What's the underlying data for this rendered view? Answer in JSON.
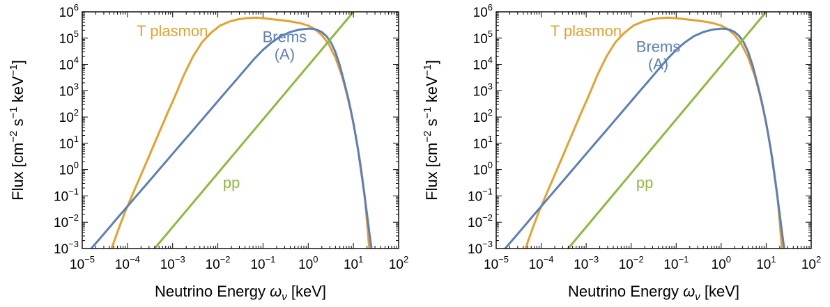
{
  "colors": {
    "t_plasmon": "#E5A12F",
    "brems": "#5B7FB8",
    "pp": "#8CBA3C",
    "axis": "#000000"
  },
  "chart_data": [
    {
      "type": "line",
      "title": "",
      "xlabel": "Neutrino Energy",
      "xlabel_symbol": "ω",
      "xlabel_symbol_sub": "ν",
      "xlabel_unit": "[keV]",
      "ylabel": "Flux",
      "ylabel_unit": "[cm−2 s−1 keV−1]",
      "xscale": "log",
      "yscale": "log",
      "xlim": [
        1e-05,
        100
      ],
      "ylim": [
        0.001,
        1000000
      ],
      "x_ticks": [
        1e-05,
        0.0001,
        0.001,
        0.01,
        0.1,
        1,
        10,
        100
      ],
      "y_ticks": [
        0.001,
        0.01,
        0.1,
        1,
        10,
        100,
        1000,
        10000,
        100000,
        1000000
      ],
      "grid": false,
      "legend": "none",
      "series": [
        {
          "name": "T plasmon",
          "label_position": [
            0.00016,
            120000
          ],
          "x": [
            4.47e-05,
            5.6e-05,
            7.08e-05,
            8.9e-05,
            0.000112,
            0.000141,
            0.000178,
            0.000224,
            0.000282,
            0.000398,
            0.000562,
            0.000794,
            0.00112,
            0.00178,
            0.00282,
            0.00447,
            0.00708,
            0.0112,
            0.0178,
            0.0282,
            0.0447,
            0.0708,
            0.112,
            0.178,
            0.282,
            0.447,
            0.708,
            1.0,
            1.41,
            2.0,
            2.82,
            4.0,
            5.62,
            7.08,
            8.91,
            11.2,
            14.1,
            17.8,
            20.0,
            22.4
          ],
          "y": [
            0.001,
            0.003,
            0.009,
            0.025,
            0.063,
            0.16,
            0.4,
            1.0,
            2.5,
            10,
            40,
            160,
            600,
            4000,
            20000,
            70000,
            160000,
            300000,
            420000,
            520000,
            580000,
            600000,
            560000,
            510000,
            470000,
            420000,
            360000,
            300000,
            220000,
            130000,
            60000,
            18000,
            3500,
            800,
            150,
            20,
            2,
            0.1,
            0.01,
            0.001
          ]
        },
        {
          "name": "Brems",
          "name_line2": "(A)",
          "label_position": [
            0.3,
            70000
          ],
          "x": [
            1.58e-05,
            2.51e-05,
            3.98e-05,
            6.3e-05,
            0.0001,
            0.000158,
            0.000251,
            0.000398,
            0.00063,
            0.001,
            0.00158,
            0.00251,
            0.00398,
            0.0063,
            0.01,
            0.0158,
            0.0251,
            0.0398,
            0.063,
            0.1,
            0.158,
            0.251,
            0.398,
            0.63,
            1.0,
            1.26,
            1.58,
            2.0,
            2.51,
            3.16,
            3.98,
            5.01,
            6.31,
            7.94,
            10.0,
            12.6,
            15.8,
            20.0,
            23.0,
            25.1
          ],
          "y": [
            0.001,
            0.0025,
            0.0063,
            0.016,
            0.04,
            0.1,
            0.25,
            0.63,
            1.58,
            4.0,
            10,
            25,
            63,
            158,
            400,
            1000,
            2500,
            6300,
            15800,
            36000,
            70000,
            120000,
            170000,
            210000,
            230000,
            225000,
            205000,
            170000,
            120000,
            70000,
            30000,
            9000,
            2000,
            400,
            60,
            6,
            0.4,
            0.02,
            0.003,
            0.001
          ]
        },
        {
          "name": "pp",
          "label_position": [
            0.02,
            0.2
          ],
          "x": [
            0.000398,
            10.0
          ],
          "y": [
            0.001,
            1000000
          ]
        }
      ]
    },
    {
      "type": "line",
      "title": "",
      "xlabel": "Neutrino Energy",
      "xlabel_symbol": "ω",
      "xlabel_symbol_sub": "ν",
      "xlabel_unit": "[keV]",
      "ylabel": "Flux",
      "ylabel_unit": "[cm−2 s−1 keV−1]",
      "xscale": "log",
      "yscale": "log",
      "xlim": [
        1e-05,
        100
      ],
      "ylim": [
        0.001,
        1000000
      ],
      "x_ticks": [
        1e-05,
        0.0001,
        0.001,
        0.01,
        0.1,
        1,
        10,
        100
      ],
      "y_ticks": [
        0.001,
        0.01,
        0.1,
        1,
        10,
        100,
        1000,
        10000,
        100000,
        1000000
      ],
      "grid": false,
      "legend": "none",
      "series": [
        {
          "name": "T plasmon",
          "label_position": [
            0.00016,
            120000
          ],
          "x": [
            4.47e-05,
            5.6e-05,
            7.08e-05,
            8.9e-05,
            0.000112,
            0.000141,
            0.000178,
            0.000224,
            0.000282,
            0.000398,
            0.000562,
            0.000794,
            0.00112,
            0.00178,
            0.00282,
            0.00447,
            0.00708,
            0.0112,
            0.0178,
            0.0282,
            0.0447,
            0.0708,
            0.112,
            0.178,
            0.282,
            0.447,
            0.708,
            1.0,
            1.41,
            2.0,
            2.82,
            4.0,
            5.62,
            7.08,
            8.91,
            11.2,
            14.1,
            17.8,
            20.0,
            22.4
          ],
          "y": [
            0.001,
            0.003,
            0.009,
            0.025,
            0.063,
            0.16,
            0.4,
            1.0,
            2.5,
            10,
            40,
            160,
            600,
            4000,
            20000,
            70000,
            160000,
            300000,
            420000,
            520000,
            580000,
            600000,
            560000,
            510000,
            470000,
            420000,
            360000,
            300000,
            220000,
            130000,
            60000,
            18000,
            3500,
            800,
            150,
            20,
            2,
            0.1,
            0.01,
            0.001
          ]
        },
        {
          "name": "Brems",
          "name_line2": "(A)",
          "label_position": [
            0.04,
            30000
          ],
          "x": [
            1.58e-05,
            2.51e-05,
            3.98e-05,
            6.3e-05,
            0.0001,
            0.000158,
            0.000251,
            0.000398,
            0.00063,
            0.001,
            0.00158,
            0.00251,
            0.00398,
            0.0063,
            0.01,
            0.0158,
            0.0251,
            0.0398,
            0.063,
            0.1,
            0.158,
            0.251,
            0.398,
            0.63,
            1.0,
            1.26,
            1.58,
            2.0,
            2.51,
            3.16,
            3.98,
            5.01,
            6.31,
            7.94,
            10.0,
            12.6,
            15.8,
            20.0,
            23.0,
            25.1
          ],
          "y": [
            0.001,
            0.0025,
            0.0063,
            0.016,
            0.04,
            0.1,
            0.25,
            0.63,
            1.58,
            4.0,
            10,
            25,
            63,
            158,
            400,
            1000,
            2500,
            6300,
            15800,
            36000,
            70000,
            120000,
            170000,
            210000,
            230000,
            225000,
            205000,
            170000,
            120000,
            70000,
            30000,
            9000,
            2000,
            400,
            60,
            6,
            0.4,
            0.02,
            0.003,
            0.001
          ]
        },
        {
          "name": "pp",
          "label_position": [
            0.02,
            0.2
          ],
          "x": [
            0.000398,
            10.0
          ],
          "y": [
            0.001,
            1000000
          ]
        }
      ]
    }
  ]
}
